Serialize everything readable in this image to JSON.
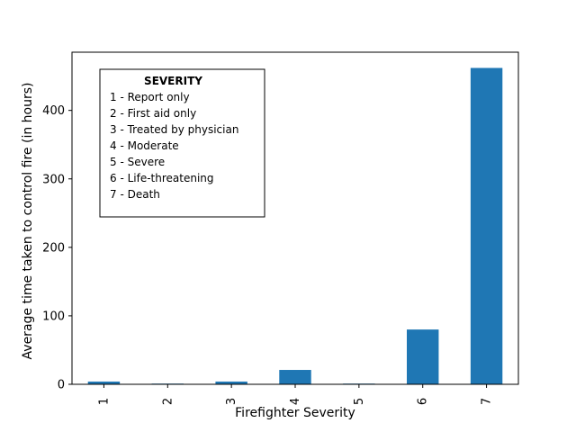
{
  "chart_data": {
    "type": "bar",
    "categories": [
      "1",
      "2",
      "3",
      "4",
      "5",
      "6",
      "7"
    ],
    "values": [
      4,
      1,
      4,
      21,
      1,
      80,
      462
    ],
    "xlabel": "Firefighter Severity",
    "ylabel": "Average time taken to control fire (in hours)",
    "ylim": [
      0,
      485
    ],
    "yticks": [
      0,
      100,
      200,
      300,
      400
    ],
    "bar_color": "#1f77b4",
    "grid": false,
    "x_tick_rotation": "vertical",
    "legend_box": {
      "placement": "top-left",
      "title": "SEVERITY",
      "items": [
        "1 - Report only",
        "2 - First aid only",
        "3 - Treated by physician",
        "4 - Moderate",
        "5 - Severe",
        "6 - Life-threatening",
        "7 - Death"
      ]
    }
  }
}
